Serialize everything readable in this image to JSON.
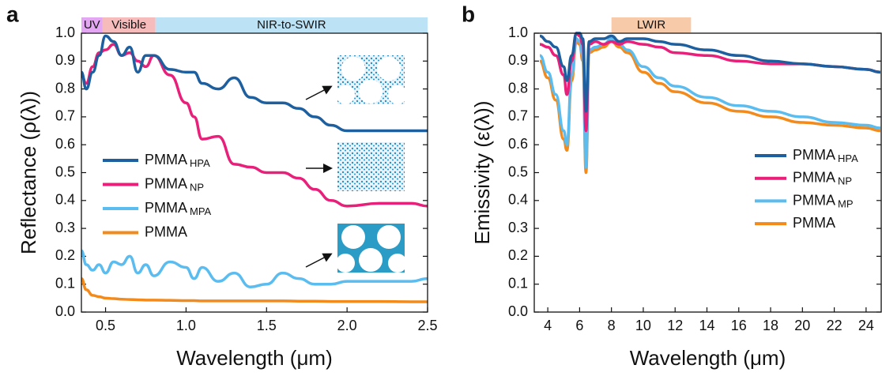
{
  "chart_data": [
    {
      "type": "line",
      "panel_label": "a",
      "x_label": "Wavelength (μm)",
      "y_label": "Reflectance (ρ(λ))",
      "xlim": [
        0.35,
        2.5
      ],
      "ylim": [
        0,
        1
      ],
      "xticks": [
        0.5,
        {
          "value": 1,
          "label": "1.0"
        },
        1.5,
        {
          "value": 2,
          "label": "2.0"
        },
        2.5
      ],
      "yticks": [
        {
          "value": 0,
          "label": "0.0"
        },
        0.1,
        0.2,
        0.3,
        0.4,
        0.5,
        0.6,
        0.7,
        0.8,
        0.9,
        {
          "value": 1,
          "label": "1.0"
        }
      ],
      "bands": [
        {
          "label": "UV",
          "range": [
            0.35,
            0.48
          ],
          "color": "#e3a6f2"
        },
        {
          "label": "Visible",
          "range": [
            0.48,
            0.81
          ],
          "color": "#f6bcbc"
        },
        {
          "label": "NIR-to-SWIR",
          "range": [
            0.81,
            2.5
          ],
          "color": "#bce2f6"
        }
      ],
      "x": [
        0.35,
        0.38,
        0.42,
        0.46,
        0.5,
        0.55,
        0.6,
        0.65,
        0.7,
        0.75,
        0.8,
        0.9,
        1.0,
        1.05,
        1.1,
        1.2,
        1.3,
        1.4,
        1.5,
        1.6,
        1.7,
        1.8,
        1.9,
        2.0,
        2.2,
        2.4,
        2.5
      ],
      "series": [
        {
          "name": "PMMA HPA",
          "color": "#1d5f9f",
          "values": [
            0.86,
            0.8,
            0.86,
            0.92,
            0.99,
            0.97,
            0.92,
            0.95,
            0.86,
            0.92,
            0.92,
            0.87,
            0.86,
            0.86,
            0.82,
            0.8,
            0.84,
            0.77,
            0.75,
            0.75,
            0.73,
            0.7,
            0.67,
            0.65,
            0.65,
            0.65,
            0.65
          ]
        },
        {
          "name": "PMMA NP",
          "color": "#e8207a",
          "values": [
            0.85,
            0.82,
            0.88,
            0.93,
            0.94,
            0.96,
            0.92,
            0.93,
            0.9,
            0.88,
            0.92,
            0.85,
            0.75,
            0.7,
            0.62,
            0.63,
            0.53,
            0.52,
            0.5,
            0.5,
            0.48,
            0.44,
            0.4,
            0.38,
            0.39,
            0.39,
            0.38
          ]
        },
        {
          "name": "PMMA MPA",
          "color": "#5bbcf0",
          "values": [
            0.22,
            0.17,
            0.15,
            0.17,
            0.14,
            0.18,
            0.17,
            0.2,
            0.14,
            0.17,
            0.13,
            0.18,
            0.16,
            0.12,
            0.16,
            0.11,
            0.14,
            0.09,
            0.1,
            0.14,
            0.12,
            0.1,
            0.1,
            0.11,
            0.11,
            0.11,
            0.12
          ]
        },
        {
          "name": "PMMA",
          "color": "#f28a1c",
          "values": [
            0.12,
            0.08,
            0.06,
            0.055,
            0.05,
            0.048,
            0.046,
            0.045,
            0.044,
            0.043,
            0.043,
            0.042,
            0.041,
            0.041,
            0.04,
            0.04,
            0.04,
            0.04,
            0.04,
            0.04,
            0.039,
            0.039,
            0.038,
            0.038,
            0.038,
            0.037,
            0.037
          ]
        }
      ]
    },
    {
      "type": "line",
      "panel_label": "b",
      "x_label": "Wavelength (μm)",
      "y_label": "Emissivity (ε(λ))",
      "xlim": [
        3.15,
        24.95
      ],
      "ylim": [
        0,
        1
      ],
      "xticks": [
        4,
        6,
        8,
        10,
        12,
        14,
        16,
        18,
        20,
        22,
        24
      ],
      "yticks": [
        {
          "value": 0,
          "label": "0.0"
        },
        0.1,
        0.2,
        0.3,
        0.4,
        0.5,
        0.6,
        0.7,
        0.8,
        0.9,
        {
          "value": 1,
          "label": "1.0"
        }
      ],
      "bands": [
        {
          "label": "LWIR",
          "range": [
            8,
            13
          ],
          "color": "#f7cbaa"
        }
      ],
      "x": [
        3.5,
        4,
        4.5,
        5,
        5.2,
        5.5,
        5.8,
        6,
        6.2,
        6.4,
        6.6,
        7,
        7.5,
        8,
        8.5,
        9,
        10,
        11,
        12,
        14,
        16,
        18,
        20,
        22,
        24,
        24.9
      ],
      "series": [
        {
          "name": "PMMA HPA",
          "color": "#1d5f9f",
          "values": [
            0.99,
            0.97,
            0.95,
            0.88,
            0.83,
            0.92,
            1.0,
            1.0,
            0.98,
            0.72,
            0.97,
            0.98,
            0.98,
            0.99,
            0.97,
            0.98,
            0.98,
            0.97,
            0.96,
            0.94,
            0.92,
            0.9,
            0.89,
            0.88,
            0.87,
            0.86
          ]
        },
        {
          "name": "PMMA NP",
          "color": "#e8207a",
          "values": [
            0.96,
            0.95,
            0.92,
            0.85,
            0.78,
            0.9,
            1.0,
            0.99,
            0.96,
            0.65,
            0.96,
            0.97,
            0.96,
            0.97,
            0.96,
            0.97,
            0.96,
            0.95,
            0.93,
            0.92,
            0.9,
            0.89,
            0.89,
            0.88,
            0.87,
            0.86
          ]
        },
        {
          "name": "PMMA MP",
          "color": "#5bbcf0",
          "values": [
            0.92,
            0.86,
            0.78,
            0.65,
            0.6,
            0.85,
            0.98,
            0.97,
            0.92,
            0.52,
            0.94,
            0.95,
            0.96,
            0.98,
            0.96,
            0.94,
            0.88,
            0.84,
            0.81,
            0.77,
            0.74,
            0.72,
            0.7,
            0.68,
            0.67,
            0.66
          ]
        },
        {
          "name": "PMMA",
          "color": "#f28a1c",
          "values": [
            0.9,
            0.84,
            0.76,
            0.62,
            0.58,
            0.83,
            0.97,
            0.96,
            0.9,
            0.5,
            0.93,
            0.94,
            0.95,
            0.97,
            0.95,
            0.93,
            0.86,
            0.82,
            0.79,
            0.75,
            0.72,
            0.7,
            0.68,
            0.67,
            0.66,
            0.65
          ]
        }
      ]
    }
  ]
}
